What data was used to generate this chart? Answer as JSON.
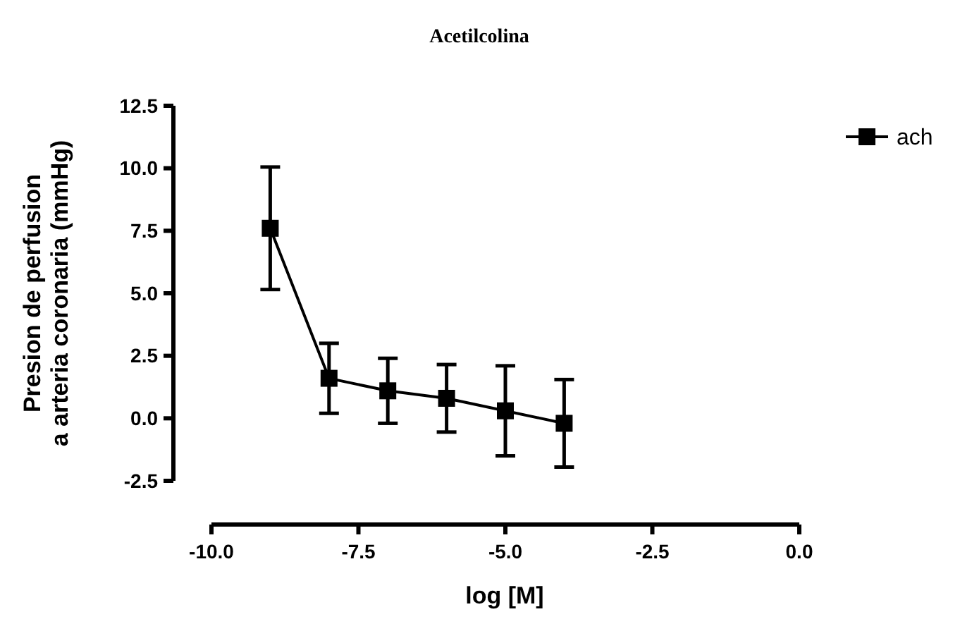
{
  "chart_data": {
    "type": "line",
    "title": "Acetilcolina",
    "xlabel": "log [M]",
    "ylabel": "Presion de perfusion a arteria coronaria (mmHg)",
    "x": [
      -9,
      -8,
      -7,
      -6,
      -5,
      -4
    ],
    "series": [
      {
        "name": "ach",
        "color": "#000000",
        "values": [
          7.6,
          1.6,
          1.1,
          0.8,
          0.3,
          -0.2
        ],
        "errors": [
          2.45,
          1.4,
          1.3,
          1.35,
          1.8,
          1.75
        ]
      }
    ],
    "xlim": [
      -10,
      0
    ],
    "xticks": [
      {
        "value": -10,
        "label": "-10.0"
      },
      {
        "value": -7.5,
        "label": "-7.5"
      },
      {
        "value": -5,
        "label": "-5.0"
      },
      {
        "value": -2.5,
        "label": "-2.5"
      },
      {
        "value": 0,
        "label": "0.0"
      }
    ],
    "ylim": [
      -2.5,
      12.5
    ],
    "yticks": [
      {
        "value": -2.5,
        "label": "-2.5"
      },
      {
        "value": 0,
        "label": "0.0"
      },
      {
        "value": 2.5,
        "label": "2.5"
      },
      {
        "value": 5,
        "label": "5.0"
      },
      {
        "value": 7.5,
        "label": "7.5"
      },
      {
        "value": 10,
        "label": "10.0"
      },
      {
        "value": 12.5,
        "label": "12.5"
      }
    ],
    "marker": "square",
    "legend": "top right",
    "grid": false
  }
}
